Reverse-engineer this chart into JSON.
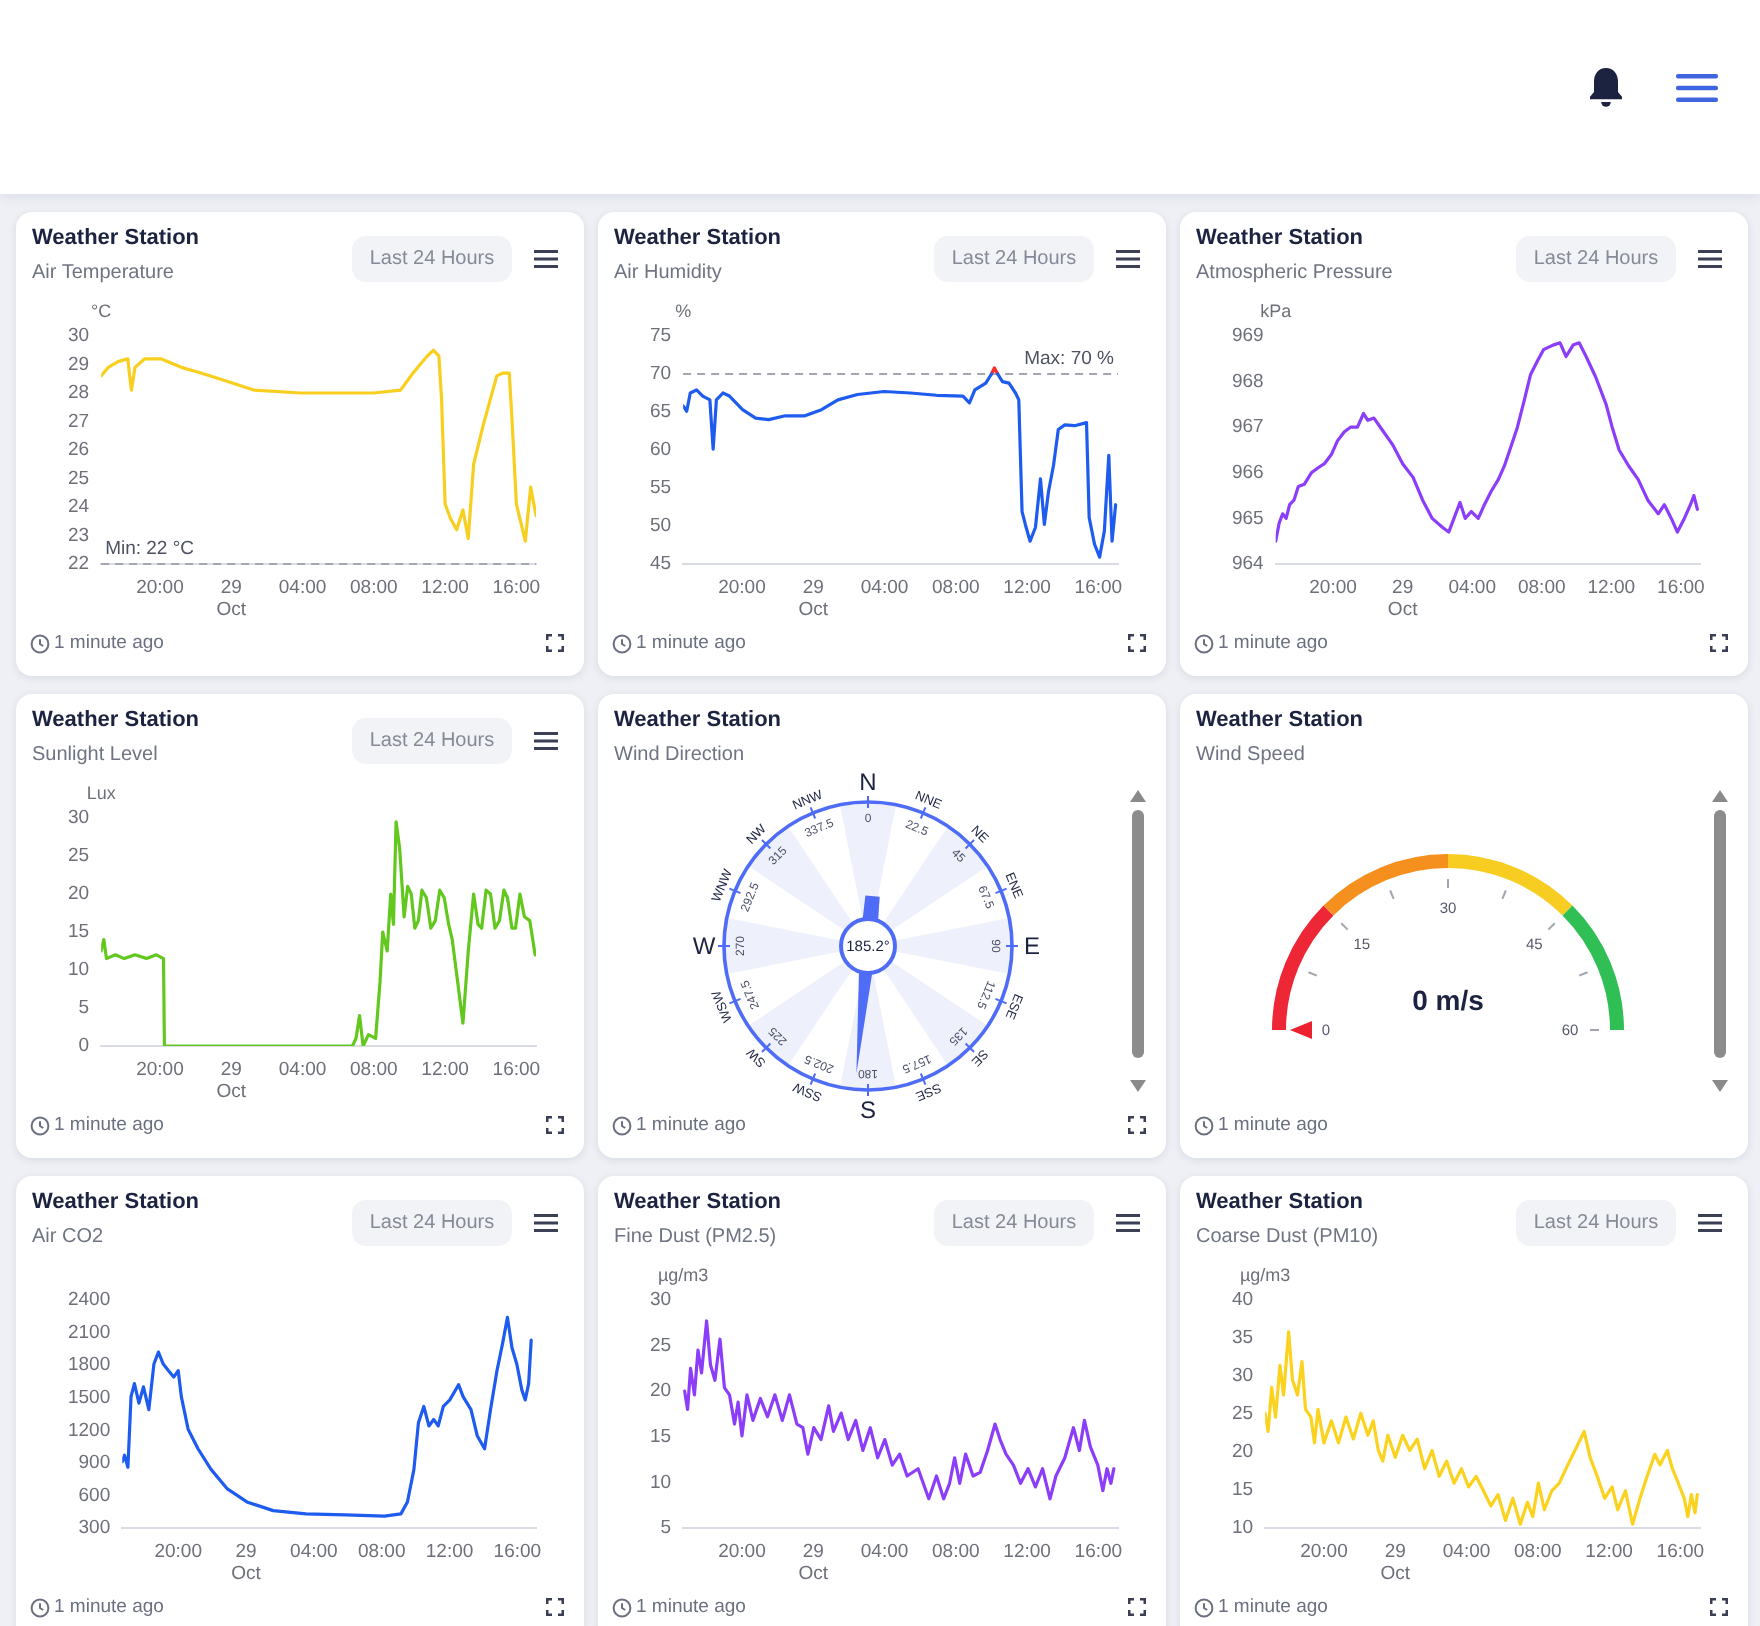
{
  "chart_data": [
    {
      "type": "line",
      "title": "Weather Station",
      "subtitle": "Air Temperature",
      "ylabel": "°C",
      "annotations": [
        "Last 24 Hours",
        "1 minute ago"
      ],
      "x": [
        "--10-28T16:42",
        "--10-28T17:06",
        "--10-28T17:39",
        "--10-28T18:12",
        "--10-28T18:18",
        "--10-28T18:24",
        "--10-28T18:36",
        "--10-28T19:09",
        "--10-28T20:03",
        "--10-28T21:12",
        "--10-28T22:18",
        "--10-28T23:48",
        "--10-29T01:18",
        "--10-29T03:54",
        "--10-29T06:30",
        "--10-29T08:00",
        "--10-29T09:30",
        "--10-29T10:12",
        "--10-29T11:00",
        "--10-29T11:21",
        "--10-29T11:39",
        "--10-29T11:48",
        "--10-29T12:00",
        "--10-29T12:18",
        "--10-29T12:39",
        "--10-29T13:00",
        "--10-29T13:18",
        "--10-29T13:36",
        "--10-29T14:09",
        "--10-29T14:54",
        "--10-29T15:15",
        "--10-29T15:36",
        "--10-29T15:45",
        "--10-29T16:00",
        "--10-29T16:30",
        "--10-29T16:48",
        "--10-29T17:06"
      ],
      "series": [
        {
          "color": "#f9cf1f",
          "values": [
            28.6,
            28.9,
            29.1,
            29.2,
            28.6,
            28.1,
            28.9,
            29.2,
            29.2,
            28.9,
            28.7,
            28.4,
            28.1,
            28.0,
            28.0,
            28.0,
            28.1,
            28.7,
            29.3,
            29.5,
            29.3,
            27.8,
            24.1,
            23.6,
            23.2,
            23.9,
            22.9,
            25.5,
            26.9,
            28.6,
            28.7,
            28.7,
            27.1,
            24.1,
            22.8,
            24.7,
            23.7
          ]
        }
      ],
      "xlim": [
        "--10-28T16:42",
        "--10-29T17:06"
      ],
      "xticks": [
        {
          "value": "--10-28T20:00",
          "label": "20:00"
        },
        {
          "value": "--10-29T00:00",
          "label": "29 Oct"
        },
        {
          "value": "--10-29T04:00",
          "label": "04:00"
        },
        {
          "value": "--10-29T08:00",
          "label": "08:00"
        },
        {
          "value": "--10-29T12:00",
          "label": "12:00"
        },
        {
          "value": "--10-29T16:00",
          "label": "16:00"
        }
      ],
      "ylim": [
        22,
        30
      ],
      "yticks": [
        22,
        23,
        24,
        25,
        26,
        27,
        28,
        29,
        30
      ],
      "ref_lines": [
        {
          "axis": "y",
          "value": 22,
          "label": "Min: 22 °C",
          "color": "#a3a6b0",
          "line_style": "dashed"
        }
      ]
    },
    {
      "type": "line",
      "title": "Weather Station",
      "subtitle": "Air Humidity",
      "ylabel": "%",
      "annotations": [
        "Last 24 Hours",
        "1 minute ago"
      ],
      "x": [
        "--10-28T16:42",
        "--10-28T16:54",
        "--10-28T17:06",
        "--10-28T17:27",
        "--10-28T17:48",
        "--10-28T18:12",
        "--10-28T18:23",
        "--10-28T18:34",
        "--10-28T18:56",
        "--10-28T19:18",
        "--10-28T19:40",
        "--10-28T20:02",
        "--10-28T20:46",
        "--10-28T21:30",
        "--10-28T22:26",
        "--10-28T23:32",
        "--10-29T00:28",
        "--10-29T01:23",
        "--10-29T02:29",
        "--10-29T03:58",
        "--10-29T05:27",
        "--10-29T06:55",
        "--10-29T08:24",
        "--10-29T08:46",
        "--10-29T09:04",
        "--10-29T09:41",
        "--10-29T10:00",
        "--10-29T10:10",
        "--10-29T10:21",
        "--10-29T10:37",
        "--10-29T10:59",
        "--10-29T11:21",
        "--10-29T11:32",
        "--10-29T11:43",
        "--10-29T11:54",
        "--10-29T12:10",
        "--10-29T12:28",
        "--10-29T12:45",
        "--10-29T12:58",
        "--10-29T13:12",
        "--10-29T13:29",
        "--10-29T13:45",
        "--10-29T14:07",
        "--10-29T14:40",
        "--10-29T15:20",
        "--10-29T15:29",
        "--10-29T15:47",
        "--10-29T16:04",
        "--10-29T16:20",
        "--10-29T16:35",
        "--10-29T16:46",
        "--10-29T16:58"
      ],
      "series": [
        {
          "color": "#1e5bef",
          "values": [
            65.8,
            65.1,
            67.5,
            67.9,
            67.1,
            66.6,
            60.1,
            66.6,
            67.5,
            67.1,
            66.2,
            65.3,
            64.2,
            64.0,
            64.5,
            64.5,
            65.3,
            66.6,
            67.3,
            67.7,
            67.5,
            67.2,
            67.1,
            66.2,
            67.9,
            68.8,
            70.0,
            null,
            70.0,
            69.0,
            68.8,
            67.5,
            66.6,
            51.9,
            50.2,
            48.0,
            49.8,
            56.2,
            50.2,
            54.5,
            58.0,
            62.7,
            63.3,
            63.2,
            63.6,
            51.1,
            47.6,
            45.9,
            49.3,
            59.3,
            48.0,
            52.8
          ]
        },
        {
          "color": "#ff2a2a",
          "x": [
            "--10-29T10:00",
            "--10-29T10:10",
            "--10-29T10:21"
          ],
          "values": [
            70.0,
            70.8,
            70.0
          ]
        }
      ],
      "xlim": [
        "--10-28T16:42",
        "--10-29T17:06"
      ],
      "xticks": [
        {
          "value": "--10-28T20:00",
          "label": "20:00"
        },
        {
          "value": "--10-29T00:00",
          "label": "29 Oct"
        },
        {
          "value": "--10-29T04:00",
          "label": "04:00"
        },
        {
          "value": "--10-29T08:00",
          "label": "08:00"
        },
        {
          "value": "--10-29T12:00",
          "label": "12:00"
        },
        {
          "value": "--10-29T16:00",
          "label": "16:00"
        }
      ],
      "ylim": [
        45,
        75
      ],
      "yticks": [
        45,
        50,
        55,
        60,
        65,
        70,
        75
      ],
      "ref_lines": [
        {
          "axis": "y",
          "value": 70,
          "label": "Max: 70 %",
          "color": "#a3a6b0",
          "line_style": "dashed"
        }
      ]
    },
    {
      "type": "line",
      "title": "Weather Station",
      "subtitle": "Atmospheric Pressure",
      "ylabel": "kPa",
      "annotations": [
        "Last 24 Hours",
        "1 minute ago"
      ],
      "x": [
        "--10-28T16:42",
        "--10-28T16:54",
        "--10-28T17:06",
        "--10-28T17:18",
        "--10-28T17:30",
        "--10-28T17:45",
        "--10-28T18:00",
        "--10-28T18:21",
        "--10-28T18:45",
        "--10-28T19:06",
        "--10-28T19:30",
        "--10-28T19:54",
        "--10-28T20:15",
        "--10-28T20:39",
        "--10-28T21:00",
        "--10-28T21:24",
        "--10-28T21:45",
        "--10-28T22:00",
        "--10-28T22:21",
        "--10-28T22:54",
        "--10-28T23:27",
        "--10-29T00:00",
        "--10-29T00:36",
        "--10-29T01:09",
        "--10-29T01:42",
        "--10-29T02:18",
        "--10-29T02:39",
        "--10-29T03:03",
        "--10-29T03:18",
        "--10-29T03:36",
        "--10-29T03:57",
        "--10-29T04:21",
        "--10-29T04:42",
        "--10-29T05:06",
        "--10-29T05:30",
        "--10-29T05:51",
        "--10-29T06:15",
        "--10-29T06:36",
        "--10-29T07:00",
        "--10-29T07:21",
        "--10-29T07:45",
        "--10-29T08:06",
        "--10-29T08:39",
        "--10-29T09:03",
        "--10-29T09:24",
        "--10-29T09:48",
        "--10-29T10:09",
        "--10-29T10:33",
        "--10-29T11:06",
        "--10-29T11:42",
        "--10-29T12:03",
        "--10-29T12:27",
        "--10-29T13:00",
        "--10-29T13:33",
        "--10-29T14:06",
        "--10-29T14:42",
        "--10-29T15:03",
        "--10-29T15:27",
        "--10-29T15:48",
        "--10-29T16:12",
        "--10-29T16:33",
        "--10-29T16:45",
        "--10-29T16:57"
      ],
      "series": [
        {
          "color": "#8b3dfa",
          "values": [
            964.5,
            964.9,
            965.1,
            965.0,
            965.3,
            965.4,
            965.7,
            965.75,
            966.0,
            966.1,
            966.2,
            966.4,
            966.7,
            966.9,
            967.0,
            967.0,
            967.3,
            967.15,
            967.2,
            966.9,
            966.6,
            966.2,
            965.9,
            965.4,
            965.0,
            964.8,
            964.7,
            965.1,
            965.35,
            965.0,
            965.15,
            965.0,
            965.3,
            965.6,
            965.85,
            966.15,
            966.6,
            967.0,
            967.6,
            968.15,
            968.45,
            968.7,
            968.8,
            968.85,
            968.55,
            968.8,
            968.85,
            968.55,
            968.1,
            967.5,
            967.0,
            966.5,
            966.15,
            965.85,
            965.4,
            965.1,
            965.3,
            965.0,
            964.7,
            965.0,
            965.3,
            965.5,
            965.2
          ]
        }
      ],
      "xlim": [
        "--10-28T16:42",
        "--10-29T17:06"
      ],
      "xticks": [
        {
          "value": "--10-28T20:00",
          "label": "20:00"
        },
        {
          "value": "--10-29T00:00",
          "label": "29 Oct"
        },
        {
          "value": "--10-29T04:00",
          "label": "04:00"
        },
        {
          "value": "--10-29T08:00",
          "label": "08:00"
        },
        {
          "value": "--10-29T12:00",
          "label": "12:00"
        },
        {
          "value": "--10-29T16:00",
          "label": "16:00"
        }
      ],
      "ylim": [
        964,
        969
      ],
      "yticks": [
        964,
        965,
        966,
        967,
        968,
        969
      ]
    },
    {
      "type": "line",
      "title": "Weather Station",
      "subtitle": "Sunlight Level",
      "ylabel": "Lux",
      "annotations": [
        "Last 24 Hours",
        "1 minute ago"
      ],
      "x": [
        "--10-28T16:42",
        "--10-28T16:51",
        "--10-28T17:00",
        "--10-28T17:30",
        "--10-28T18:00",
        "--10-28T18:36",
        "--10-28T19:15",
        "--10-28T19:48",
        "--10-28T20:12",
        "--10-28T20:15",
        "--10-28T23:36",
        "--10-29T03:24",
        "--10-29T06:48",
        "--10-29T07:00",
        "--10-29T07:12",
        "--10-29T07:24",
        "--10-29T07:42",
        "--10-29T08:06",
        "--10-29T08:21",
        "--10-29T08:30",
        "--10-29T08:45",
        "--10-29T08:57",
        "--10-29T09:06",
        "--10-29T09:15",
        "--10-29T09:27",
        "--10-29T09:42",
        "--10-29T09:54",
        "--10-29T10:06",
        "--10-29T10:18",
        "--10-29T10:30",
        "--10-29T10:42",
        "--10-29T10:57",
        "--10-29T11:12",
        "--10-29T11:27",
        "--10-29T11:42",
        "--10-29T11:57",
        "--10-29T12:12",
        "--10-29T12:24",
        "--10-29T12:42",
        "--10-29T13:00",
        "--10-29T13:18",
        "--10-29T13:36",
        "--10-29T13:51",
        "--10-29T14:03",
        "--10-29T14:18",
        "--10-29T14:33",
        "--10-29T14:48",
        "--10-29T15:03",
        "--10-29T15:18",
        "--10-29T15:30",
        "--10-29T15:45",
        "--10-29T15:57",
        "--10-29T16:12",
        "--10-29T16:27",
        "--10-29T16:45",
        "--10-29T17:03"
      ],
      "series": [
        {
          "color": "#62c81e",
          "values": [
            12.5,
            14,
            11.5,
            12,
            11.5,
            12,
            11.5,
            12,
            11.5,
            0,
            0,
            0,
            0,
            1,
            4,
            0,
            1.5,
            1,
            8.5,
            15,
            12.5,
            20,
            16,
            29.5,
            26,
            17,
            21,
            20,
            15.5,
            16.5,
            20.5,
            19.5,
            15.5,
            16.5,
            20.5,
            19.5,
            16,
            14,
            8.5,
            3,
            12.5,
            20,
            16,
            15.5,
            20.5,
            20,
            15.5,
            16.5,
            20.5,
            19.5,
            15.5,
            15.5,
            20,
            17,
            16.5,
            12
          ]
        }
      ],
      "xlim": [
        "--10-28T16:42",
        "--10-29T17:06"
      ],
      "xticks": [
        {
          "value": "--10-28T20:00",
          "label": "20:00"
        },
        {
          "value": "--10-29T00:00",
          "label": "29 Oct"
        },
        {
          "value": "--10-29T04:00",
          "label": "04:00"
        },
        {
          "value": "--10-29T08:00",
          "label": "08:00"
        },
        {
          "value": "--10-29T12:00",
          "label": "12:00"
        },
        {
          "value": "--10-29T16:00",
          "label": "16:00"
        }
      ],
      "ylim": [
        0,
        30
      ],
      "yticks": [
        0,
        5,
        10,
        15,
        20,
        25,
        30
      ]
    },
    {
      "type": "other",
      "title": "Weather Station",
      "subtitle": "Wind Direction",
      "annotations": [
        "N",
        "NNE",
        "NE",
        "ENE",
        "E",
        "ESE",
        "SE",
        "SSE",
        "S",
        "SSW",
        "SW",
        "WSW",
        "W",
        "WNW",
        "NW",
        "NNW",
        "0",
        "22.5",
        "45",
        "67.5",
        "90",
        "112.5",
        "135",
        "157.5",
        "180",
        "202.5",
        "225",
        "247.5",
        "270",
        "292.5",
        "315",
        "337.5",
        "185.2°",
        "1 minute ago"
      ]
    },
    {
      "type": "other",
      "title": "Weather Station",
      "subtitle": "Wind Speed",
      "annotations": [
        "0",
        "15",
        "30",
        "45",
        "60",
        "0 m/s",
        "1 minute ago"
      ]
    },
    {
      "type": "line",
      "title": "Weather Station",
      "subtitle": "Air CO2",
      "annotations": [
        "Last 24 Hours",
        "1 minute ago"
      ],
      "x": [
        "--10-28T16:42",
        "--10-28T16:50",
        "--10-28T17:02",
        "--10-28T17:13",
        "--10-28T17:25",
        "--10-28T17:41",
        "--10-28T17:57",
        "--10-28T18:16",
        "--10-28T18:34",
        "--10-28T18:50",
        "--10-28T19:07",
        "--10-28T19:25",
        "--10-28T19:44",
        "--10-28T20:00",
        "--10-28T20:11",
        "--10-28T20:35",
        "--10-28T21:10",
        "--10-28T21:56",
        "--10-28T22:54",
        "--10-29T00:03",
        "--10-29T01:36",
        "--10-29T03:32",
        "--10-29T05:51",
        "--10-29T08:10",
        "--10-29T09:08",
        "--10-29T09:31",
        "--10-29T09:54",
        "--10-29T10:10",
        "--10-29T10:29",
        "--10-29T10:47",
        "--10-29T11:04",
        "--10-29T11:20",
        "--10-29T11:38",
        "--10-29T12:01",
        "--10-29T12:32",
        "--10-29T12:48",
        "--10-29T13:16",
        "--10-29T13:38",
        "--10-29T14:04",
        "--10-29T14:25",
        "--10-29T14:48",
        "--10-29T15:07",
        "--10-29T15:25",
        "--10-29T15:41",
        "--10-29T15:58",
        "--10-29T16:16",
        "--10-29T16:28",
        "--10-29T16:40",
        "--10-29T16:49"
      ],
      "series": [
        {
          "color": "#1e5bef",
          "values": [
            910,
            970,
            860,
            1510,
            1630,
            1450,
            1600,
            1390,
            1810,
            1920,
            1810,
            1750,
            1690,
            1750,
            1510,
            1210,
            1030,
            840,
            660,
            540,
            460,
            430,
            420,
            410,
            430,
            540,
            840,
            1270,
            1420,
            1240,
            1300,
            1240,
            1420,
            1480,
            1620,
            1510,
            1390,
            1150,
            1030,
            1390,
            1750,
            1990,
            2240,
            1960,
            1810,
            1570,
            1480,
            1630,
            2030
          ]
        }
      ],
      "xlim": [
        "--10-28T16:42",
        "--10-29T17:06"
      ],
      "xticks": [
        {
          "value": "--10-28T20:00",
          "label": "20:00"
        },
        {
          "value": "--10-29T00:00",
          "label": "29 Oct"
        },
        {
          "value": "--10-29T04:00",
          "label": "04:00"
        },
        {
          "value": "--10-29T08:00",
          "label": "08:00"
        },
        {
          "value": "--10-29T12:00",
          "label": "12:00"
        },
        {
          "value": "--10-29T16:00",
          "label": "16:00"
        }
      ],
      "ylim": [
        300,
        2400
      ],
      "yticks": [
        300,
        600,
        900,
        1200,
        1500,
        1800,
        2100,
        2400
      ]
    },
    {
      "type": "line",
      "title": "Weather Station",
      "subtitle": "Fine Dust (PM2.5)",
      "ylabel": "µg/m3",
      "annotations": [
        "Last 24 Hours",
        "1 minute ago"
      ],
      "x": [
        "--10-28T16:47",
        "--10-28T16:57",
        "--10-28T17:07",
        "--10-28T17:20",
        "--10-28T17:32",
        "--10-28T17:44",
        "--10-28T18:01",
        "--10-28T18:14",
        "--10-28T18:29",
        "--10-28T18:46",
        "--10-28T19:01",
        "--10-28T19:18",
        "--10-28T19:35",
        "--10-28T19:47",
        "--10-28T20:00",
        "--10-28T20:17",
        "--10-28T20:37",
        "--10-28T21:02",
        "--10-28T21:26",
        "--10-28T21:51",
        "--10-28T22:16",
        "--10-28T22:40",
        "--10-28T23:05",
        "--10-28T23:25",
        "--10-28T23:42",
        "--10-29T00:02",
        "--10-29T00:26",
        "--10-29T00:52",
        "--10-29T01:08",
        "--10-29T01:34",
        "--10-29T01:58",
        "--10-29T02:23",
        "--10-29T02:47",
        "--10-29T03:12",
        "--10-29T03:37",
        "--10-29T04:01",
        "--10-29T04:26",
        "--10-29T04:51",
        "--10-29T05:16",
        "--10-29T05:53",
        "--10-29T06:29",
        "--10-29T06:55",
        "--10-29T07:19",
        "--10-29T07:39",
        "--10-29T07:56",
        "--10-29T08:13",
        "--10-29T08:33",
        "--10-29T08:58",
        "--10-29T09:22",
        "--10-29T09:47",
        "--10-29T10:12",
        "--10-29T10:29",
        "--10-29T10:49",
        "--10-29T11:14",
        "--10-29T11:38",
        "--10-29T12:03",
        "--10-29T12:28",
        "--10-29T12:52",
        "--10-29T13:17",
        "--10-29T13:37",
        "--10-29T14:07",
        "--10-29T14:36",
        "--10-29T14:56",
        "--10-29T15:13",
        "--10-29T15:33",
        "--10-29T15:58",
        "--10-29T16:15",
        "--10-29T16:29",
        "--10-29T16:42",
        "--10-29T16:52"
      ],
      "series": [
        {
          "color": "#8b3dfa",
          "values": [
            20.0,
            18.0,
            22.5,
            19.6,
            24.5,
            22.0,
            27.7,
            22.9,
            21.2,
            25.7,
            20.4,
            19.6,
            16.4,
            18.8,
            15.1,
            19.6,
            16.8,
            19.2,
            17.2,
            19.6,
            16.8,
            19.6,
            16.4,
            16.0,
            13.1,
            16.0,
            14.7,
            18.4,
            15.6,
            17.6,
            14.7,
            16.8,
            13.5,
            16.0,
            12.7,
            14.7,
            11.9,
            13.1,
            10.7,
            11.5,
            8.2,
            10.7,
            8.2,
            9.9,
            12.7,
            9.9,
            13.1,
            10.7,
            11.1,
            13.5,
            16.4,
            14.7,
            13.1,
            11.9,
            9.9,
            11.5,
            9.5,
            11.5,
            8.2,
            10.7,
            12.7,
            16.0,
            13.5,
            16.8,
            13.9,
            11.9,
            9.1,
            11.5,
            9.9,
            11.5
          ]
        }
      ],
      "xlim": [
        "--10-28T16:42",
        "--10-29T17:06"
      ],
      "xticks": [
        {
          "value": "--10-28T20:00",
          "label": "20:00"
        },
        {
          "value": "--10-29T00:00",
          "label": "29 Oct"
        },
        {
          "value": "--10-29T04:00",
          "label": "04:00"
        },
        {
          "value": "--10-29T08:00",
          "label": "08:00"
        },
        {
          "value": "--10-29T12:00",
          "label": "12:00"
        },
        {
          "value": "--10-29T16:00",
          "label": "16:00"
        }
      ],
      "ylim": [
        5,
        30
      ],
      "yticks": [
        5,
        10,
        15,
        20,
        25,
        30
      ]
    },
    {
      "type": "line",
      "title": "Weather Station",
      "subtitle": "Coarse Dust (PM10)",
      "ylabel": "µg/m3",
      "annotations": [
        "Last 24 Hours",
        "1 minute ago"
      ],
      "x": [
        "--10-28T16:42",
        "--10-28T16:52",
        "--10-28T17:04",
        "--10-28T17:17",
        "--10-28T17:32",
        "--10-28T17:44",
        "--10-28T18:01",
        "--10-28T18:14",
        "--10-28T18:31",
        "--10-28T18:46",
        "--10-28T18:58",
        "--10-28T19:16",
        "--10-28T19:28",
        "--10-28T19:40",
        "--10-28T20:00",
        "--10-28T20:25",
        "--10-28T20:49",
        "--10-28T21:14",
        "--10-28T21:39",
        "--10-28T22:04",
        "--10-28T22:28",
        "--10-28T22:46",
        "--10-28T23:03",
        "--10-28T23:18",
        "--10-28T23:35",
        "--10-29T00:00",
        "--10-29T00:25",
        "--10-29T00:49",
        "--10-29T01:14",
        "--10-29T01:39",
        "--10-29T02:04",
        "--10-29T02:28",
        "--10-29T02:53",
        "--10-29T03:18",
        "--10-29T03:43",
        "--10-29T04:07",
        "--10-29T04:32",
        "--10-29T04:57",
        "--10-29T05:22",
        "--10-29T05:46",
        "--10-29T06:11",
        "--10-29T06:36",
        "--10-29T07:01",
        "--10-29T07:25",
        "--10-29T07:43",
        "--10-29T08:02",
        "--10-29T08:22",
        "--10-29T08:47",
        "--10-29T09:12",
        "--10-29T09:41",
        "--10-29T10:11",
        "--10-29T10:36",
        "--10-29T10:56",
        "--10-29T11:20",
        "--10-29T11:45",
        "--10-29T12:10",
        "--10-29T12:29",
        "--10-29T12:55",
        "--10-29T13:19",
        "--10-29T13:44",
        "--10-29T14:08",
        "--10-29T14:34",
        "--10-29T14:51",
        "--10-29T15:16",
        "--10-29T15:33",
        "--10-29T15:53",
        "--10-29T16:13",
        "--10-29T16:25",
        "--10-29T16:37",
        "--10-29T16:49",
        "--10-29T16:57"
      ],
      "series": [
        {
          "color": "#fbd21e",
          "values": [
            25.1,
            22.7,
            28.5,
            24.6,
            31.4,
            27.5,
            35.8,
            29.5,
            27.5,
            31.9,
            25.6,
            24.6,
            21.2,
            25.6,
            21.2,
            24.1,
            21.2,
            24.6,
            21.7,
            25.1,
            22.2,
            24.1,
            20.2,
            18.8,
            22.2,
            19.3,
            22.2,
            20.2,
            21.7,
            17.8,
            20.2,
            16.8,
            18.8,
            15.9,
            17.8,
            15.4,
            16.8,
            14.9,
            12.9,
            14.4,
            11.0,
            13.9,
            10.5,
            13.4,
            11.5,
            15.9,
            12.4,
            14.9,
            15.9,
            18.3,
            20.7,
            22.7,
            19.3,
            16.8,
            13.9,
            15.4,
            12.4,
            14.9,
            10.5,
            13.9,
            16.8,
            19.7,
            18.3,
            20.2,
            17.8,
            15.9,
            13.9,
            11.5,
            14.4,
            12.0,
            14.4
          ]
        }
      ],
      "xlim": [
        "--10-28T16:42",
        "--10-29T17:06"
      ],
      "xticks": [
        {
          "value": "--10-28T20:00",
          "label": "20:00"
        },
        {
          "value": "--10-29T00:00",
          "label": "29 Oct"
        },
        {
          "value": "--10-29T04:00",
          "label": "04:00"
        },
        {
          "value": "--10-29T08:00",
          "label": "08:00"
        },
        {
          "value": "--10-29T12:00",
          "label": "12:00"
        },
        {
          "value": "--10-29T16:00",
          "label": "16:00"
        }
      ],
      "ylim": [
        10,
        40
      ],
      "yticks": [
        10,
        15,
        20,
        25,
        30,
        35,
        40
      ]
    }
  ]
}
